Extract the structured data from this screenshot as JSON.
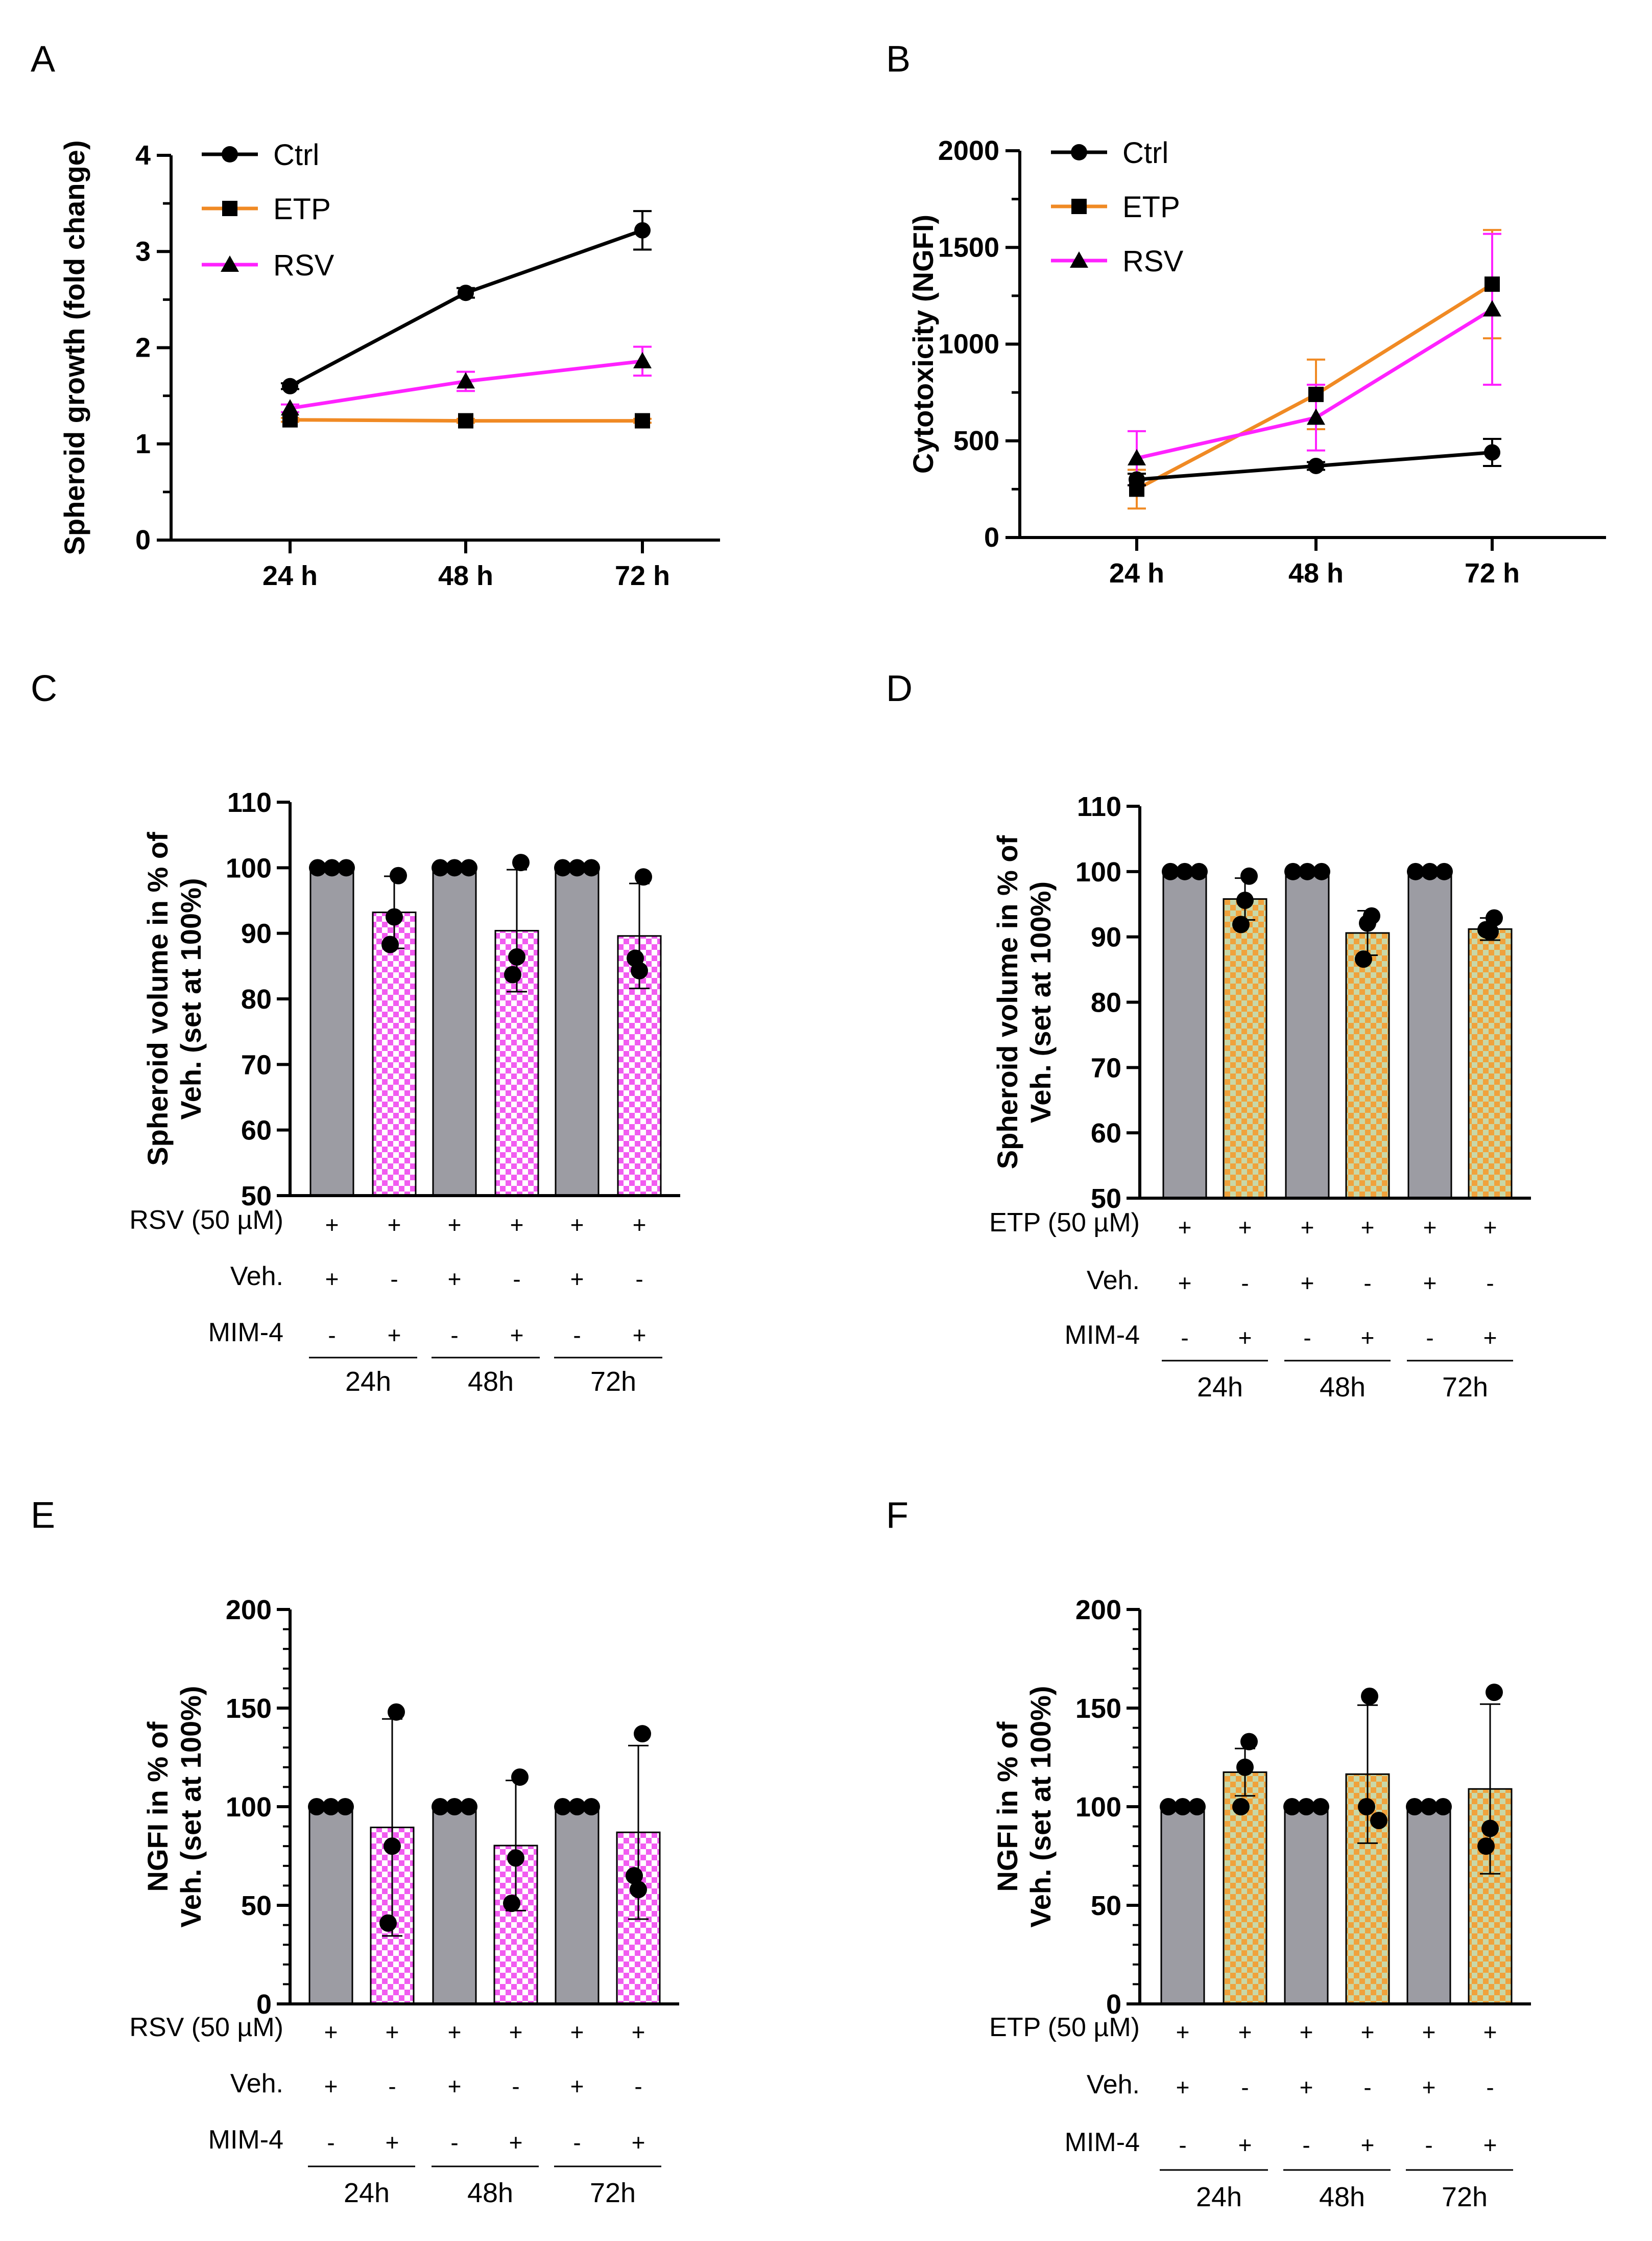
{
  "colors": {
    "ctrl": "#000000",
    "etp": "#f08a24",
    "rsv": "#ff22ff",
    "veh_bar": "#9c9ca3",
    "rsv_check_a": "#f15cf0",
    "rsv_check_b": "#ffffff",
    "etp_check_a": "#f0a23c",
    "etp_check_b": "#c8d8a8"
  },
  "chart_data": [
    {
      "panel": "A",
      "type": "line",
      "ylabel": "Spheroid growth (fold change)",
      "categories": [
        "24 h",
        "48 h",
        "72 h"
      ],
      "ylim": [
        0,
        4
      ],
      "yticks": [
        "0",
        "1",
        "2",
        "3",
        "4"
      ],
      "series": [
        {
          "name": "Ctrl",
          "marker": "circle",
          "values": [
            1.6,
            2.57,
            3.22
          ],
          "errors": [
            0.03,
            0.05,
            0.2
          ]
        },
        {
          "name": "ETP",
          "marker": "square",
          "values": [
            1.25,
            1.24,
            1.24
          ],
          "errors": [
            0.02,
            0.02,
            0.02
          ]
        },
        {
          "name": "RSV",
          "marker": "triangle",
          "values": [
            1.37,
            1.65,
            1.86
          ],
          "errors": [
            0.04,
            0.1,
            0.15
          ]
        }
      ]
    },
    {
      "panel": "B",
      "type": "line",
      "ylabel": "Cytotoxicity (NGFI)",
      "categories": [
        "24 h",
        "48 h",
        "72 h"
      ],
      "ylim": [
        0,
        2000
      ],
      "yticks": [
        "0",
        "500",
        "1000",
        "1500",
        "2000"
      ],
      "series": [
        {
          "name": "Ctrl",
          "marker": "circle",
          "values": [
            300,
            370,
            440
          ],
          "errors": [
            30,
            20,
            70
          ]
        },
        {
          "name": "ETP",
          "marker": "square",
          "values": [
            250,
            740,
            1310
          ],
          "errors": [
            100,
            180,
            280
          ]
        },
        {
          "name": "RSV",
          "marker": "triangle",
          "values": [
            410,
            620,
            1180
          ],
          "errors": [
            140,
            170,
            390
          ]
        }
      ]
    },
    {
      "panel": "C",
      "type": "bar",
      "ylabel": [
        "Spheroid volume in % of",
        "Veh. (set at 100%)"
      ],
      "ylim": [
        50,
        110
      ],
      "yticks": [
        "50",
        "60",
        "70",
        "80",
        "90",
        "100",
        "110"
      ],
      "treatment": "RSV",
      "values": [
        100,
        93.2,
        100,
        90.4,
        100,
        89.6
      ],
      "errors": [
        0,
        5.5,
        0,
        9.3,
        0,
        8
      ],
      "points": [
        [
          100,
          100,
          100
        ],
        [
          98.8,
          92.5,
          88.3
        ],
        [
          100,
          100,
          100
        ],
        [
          100.8,
          86.4,
          83.7
        ],
        [
          100,
          100,
          100
        ],
        [
          98.6,
          84.3,
          86.2
        ]
      ],
      "row_labels": [
        "RSV (50 µM)",
        "Veh.",
        "MIM-4"
      ],
      "rows": [
        [
          "+",
          "+",
          "+",
          "+",
          "+",
          "+"
        ],
        [
          "+",
          "-",
          "+",
          "-",
          "+",
          "-"
        ],
        [
          "-",
          "+",
          "-",
          "+",
          "-",
          "+"
        ]
      ],
      "groups": [
        "24h",
        "48h",
        "72h"
      ]
    },
    {
      "panel": "D",
      "type": "bar",
      "ylabel": [
        "Spheroid volume in % of",
        "Veh. (set at 100%)"
      ],
      "ylim": [
        50,
        110
      ],
      "yticks": [
        "50",
        "60",
        "70",
        "80",
        "90",
        "100",
        "110"
      ],
      "treatment": "ETP",
      "values": [
        100,
        95.8,
        100,
        90.6,
        100,
        91.2
      ],
      "errors": [
        0,
        3.2,
        0,
        3.4,
        0,
        1.7
      ],
      "points": [
        [
          100,
          100,
          100
        ],
        [
          99.3,
          95.6,
          91.9
        ],
        [
          100,
          100,
          100
        ],
        [
          93.2,
          92.1,
          86.6
        ],
        [
          100,
          100,
          100
        ],
        [
          92.9,
          90.8,
          91.1
        ]
      ],
      "row_labels": [
        "ETP (50 µM)",
        "Veh.",
        "MIM-4"
      ],
      "rows": [
        [
          "+",
          "+",
          "+",
          "+",
          "+",
          "+"
        ],
        [
          "+",
          "-",
          "+",
          "-",
          "+",
          "-"
        ],
        [
          "-",
          "+",
          "-",
          "+",
          "-",
          "+"
        ]
      ],
      "groups": [
        "24h",
        "48h",
        "72h"
      ]
    },
    {
      "panel": "E",
      "type": "bar",
      "ylabel": [
        "NGFI in % of",
        "Veh. (set at 100%)"
      ],
      "ylim": [
        0,
        200
      ],
      "yticks": [
        "0",
        "50",
        "100",
        "150",
        "200"
      ],
      "treatment": "RSV",
      "values": [
        100,
        89.5,
        100,
        80.3,
        100,
        87
      ],
      "errors": [
        0,
        55,
        0,
        33,
        0,
        44
      ],
      "points": [
        [
          100,
          100,
          100
        ],
        [
          148,
          80,
          41
        ],
        [
          100,
          100,
          100
        ],
        [
          115,
          74,
          51
        ],
        [
          100,
          100,
          100
        ],
        [
          137,
          58,
          65
        ]
      ],
      "row_labels": [
        "RSV (50 µM)",
        "Veh.",
        "MIM-4"
      ],
      "rows": [
        [
          "+",
          "+",
          "+",
          "+",
          "+",
          "+"
        ],
        [
          "+",
          "-",
          "+",
          "-",
          "+",
          "-"
        ],
        [
          "-",
          "+",
          "-",
          "+",
          "-",
          "+"
        ]
      ],
      "groups": [
        "24h",
        "48h",
        "72h"
      ]
    },
    {
      "panel": "F",
      "type": "bar",
      "ylabel": [
        "NGFI in % of",
        "Veh. (set at 100%)"
      ],
      "ylim": [
        0,
        200
      ],
      "yticks": [
        "0",
        "50",
        "100",
        "150",
        "200"
      ],
      "treatment": "ETP",
      "values": [
        100,
        117.5,
        100,
        116.5,
        100,
        109
      ],
      "errors": [
        0,
        12,
        0,
        35,
        0,
        43
      ],
      "points": [
        [
          100,
          100,
          100
        ],
        [
          133,
          120,
          100
        ],
        [
          100,
          100,
          100
        ],
        [
          156,
          93,
          100
        ],
        [
          100,
          100,
          100
        ],
        [
          158,
          89,
          80
        ]
      ],
      "row_labels": [
        "ETP (50 µM)",
        "Veh.",
        "MIM-4"
      ],
      "rows": [
        [
          "+",
          "+",
          "+",
          "+",
          "+",
          "+"
        ],
        [
          "+",
          "-",
          "+",
          "-",
          "+",
          "-"
        ],
        [
          "-",
          "+",
          "-",
          "+",
          "-",
          "+"
        ]
      ],
      "groups": [
        "24h",
        "48h",
        "72h"
      ]
    }
  ]
}
